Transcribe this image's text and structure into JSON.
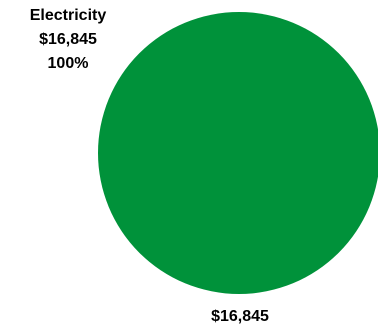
{
  "chart_data": {
    "type": "pie",
    "slices": [
      {
        "label": "Electricity",
        "value": 16845,
        "value_label": "$16,845",
        "percent_label": "100%",
        "color": "#00923A"
      }
    ],
    "total_label": "$16,845"
  }
}
